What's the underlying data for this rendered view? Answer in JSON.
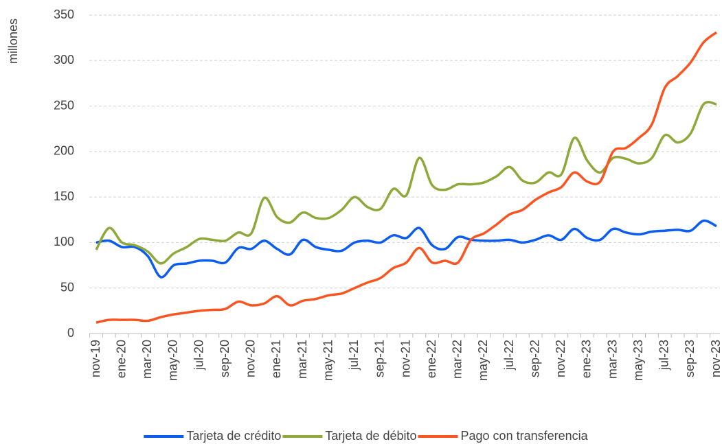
{
  "chart_data": {
    "type": "line",
    "y_label": "millones",
    "categories": [
      "nov-19",
      null,
      "ene-20",
      null,
      "mar-20",
      null,
      "may-20",
      null,
      "jul-20",
      null,
      "sep-20",
      null,
      "nov-20",
      null,
      "ene-21",
      null,
      "mar-21",
      null,
      "may-21",
      null,
      "jul-21",
      null,
      "sep-21",
      null,
      "nov-21",
      null,
      "ene-22",
      null,
      "mar-22",
      null,
      "may-22",
      null,
      "jul-22",
      null,
      "sep-22",
      null,
      "nov-22",
      null,
      "ene-23",
      null,
      "mar-23",
      null,
      "may-23",
      null,
      "jul-23",
      null,
      "sep-23",
      null,
      "nov-23"
    ],
    "series": [
      {
        "name": "Tarjeta de crédito",
        "color": "#0b5cf0",
        "values": [
          100,
          102,
          95,
          95,
          85,
          62,
          75,
          77,
          80,
          80,
          78,
          94,
          93,
          102,
          93,
          87,
          103,
          95,
          92,
          91,
          100,
          102,
          100,
          108,
          105,
          116,
          97,
          93,
          106,
          103,
          102,
          102,
          103,
          100,
          103,
          108,
          103,
          115,
          105,
          103,
          115,
          111,
          109,
          112,
          113,
          114,
          113,
          124,
          118
        ]
      },
      {
        "name": "Tarjeta de débito",
        "color": "#8ea83a",
        "values": [
          92,
          116,
          100,
          97,
          90,
          77,
          88,
          95,
          104,
          103,
          102,
          111,
          110,
          149,
          128,
          122,
          133,
          127,
          127,
          136,
          150,
          139,
          137,
          159,
          152,
          193,
          163,
          158,
          164,
          164,
          166,
          173,
          183,
          168,
          166,
          177,
          175,
          215,
          190,
          177,
          193,
          192,
          187,
          193,
          218,
          210,
          220,
          252,
          252
        ]
      },
      {
        "name": "Pago con transferencia",
        "color": "#fa5420",
        "values": [
          12,
          15,
          15,
          15,
          14,
          18,
          21,
          23,
          25,
          26,
          27,
          35,
          31,
          33,
          41,
          31,
          36,
          38,
          42,
          44,
          50,
          56,
          61,
          72,
          78,
          94,
          78,
          80,
          78,
          103,
          110,
          120,
          131,
          136,
          147,
          155,
          161,
          177,
          167,
          167,
          200,
          204,
          215,
          230,
          270,
          283,
          298,
          320,
          331
        ]
      }
    ],
    "ylim": [
      0,
      350
    ],
    "yticks": [
      0,
      50,
      100,
      150,
      200,
      250,
      300,
      350
    ],
    "grid": true,
    "legend": "bottom"
  }
}
